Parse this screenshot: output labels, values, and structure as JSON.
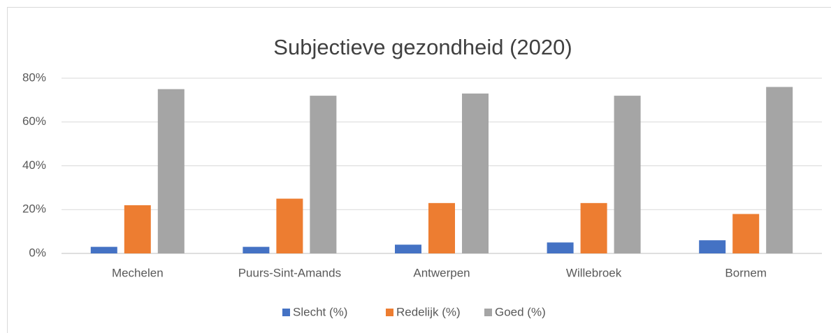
{
  "chart_data": {
    "type": "bar",
    "title": "Subjectieve gezondheid (2020)",
    "categories": [
      "Mechelen",
      "Puurs-Sint-Amands",
      "Antwerpen",
      "Willebroek",
      "Bornem"
    ],
    "series": [
      {
        "name": "Slecht (%)",
        "color": "#4472c4",
        "values": [
          3,
          3,
          4,
          5,
          6
        ]
      },
      {
        "name": "Redelijk (%)",
        "color": "#ed7d31",
        "values": [
          22,
          25,
          23,
          23,
          18
        ]
      },
      {
        "name": "Goed (%)",
        "color": "#a5a5a5",
        "values": [
          75,
          72,
          73,
          72,
          76
        ]
      }
    ],
    "ylim": [
      0,
      80
    ],
    "yticks": [
      {
        "value": 0,
        "label": "0%"
      },
      {
        "value": 20,
        "label": "20%"
      },
      {
        "value": 40,
        "label": "40%"
      },
      {
        "value": 60,
        "label": "60%"
      },
      {
        "value": 80,
        "label": "80%"
      }
    ],
    "grid": true,
    "legend": "bottom"
  }
}
